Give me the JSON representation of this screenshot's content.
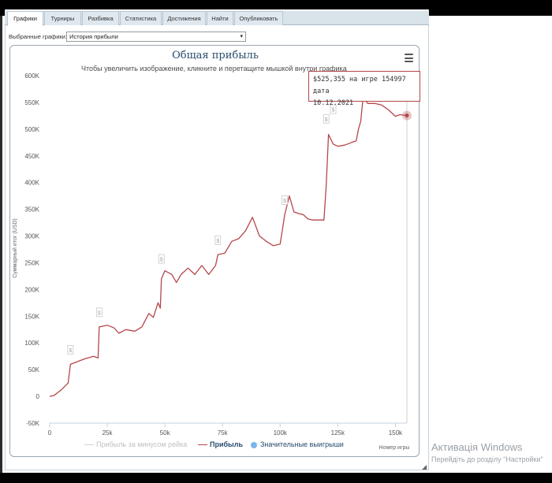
{
  "tabs": [
    {
      "label": "Графики",
      "active": true
    },
    {
      "label": "Турниры",
      "active": false
    },
    {
      "label": "Разбивка",
      "active": false
    },
    {
      "label": "Статистика",
      "active": false
    },
    {
      "label": "Достижения",
      "active": false
    },
    {
      "label": "Найти",
      "active": false
    },
    {
      "label": "Опубликовать",
      "active": false
    }
  ],
  "selector": {
    "label": "Выбранные графики:",
    "value": "История прибыли"
  },
  "chart_data": {
    "type": "line",
    "title": "Общая прибыль",
    "subtitle": "Чтобы увеличить изображение, кликните и перетащите мышкой внутри графика",
    "xlabel": "Номер игры",
    "ylabel": "Суммарный итог (USD)",
    "xlim": [
      0,
      155000
    ],
    "ylim": [
      -50000,
      600000
    ],
    "x_ticks": [
      "0",
      "25k",
      "50k",
      "75k",
      "100k",
      "125k",
      "150k"
    ],
    "y_ticks": [
      "-50K",
      "0",
      "50K",
      "100K",
      "150K",
      "200K",
      "250K",
      "300K",
      "350K",
      "400K",
      "450K",
      "500K",
      "550K",
      "600K"
    ],
    "series": [
      {
        "name": "Прибыль за минусом рейка",
        "color": "#d3d3d3",
        "values": []
      },
      {
        "name": "Прибыль",
        "color": "#b5464a",
        "x": [
          0,
          2000,
          5000,
          8000,
          9000,
          12000,
          15000,
          19000,
          21000,
          21500,
          25000,
          28000,
          30000,
          33000,
          37000,
          40000,
          43000,
          45000,
          47000,
          48000,
          48500,
          50000,
          53000,
          55000,
          57000,
          60000,
          63000,
          66000,
          69000,
          72000,
          73000,
          76000,
          79000,
          82000,
          85000,
          88000,
          91000,
          94000,
          97000,
          100000,
          102000,
          104000,
          106000,
          108000,
          110000,
          112000,
          114000,
          117000,
          119000,
          120000,
          121000,
          123000,
          125000,
          128000,
          131000,
          133000,
          134000,
          135000,
          136000,
          138000,
          141000,
          144000,
          147000,
          150000,
          152000,
          154997
        ],
        "values": [
          0,
          2000,
          12000,
          25000,
          60000,
          65000,
          70000,
          75000,
          72000,
          130000,
          133000,
          128000,
          118000,
          125000,
          122000,
          130000,
          155000,
          148000,
          175000,
          165000,
          220000,
          235000,
          228000,
          213000,
          228000,
          240000,
          228000,
          245000,
          228000,
          245000,
          265000,
          268000,
          290000,
          295000,
          310000,
          335000,
          300000,
          290000,
          282000,
          285000,
          340000,
          375000,
          345000,
          342000,
          340000,
          332000,
          330000,
          330000,
          330000,
          395000,
          490000,
          472000,
          468000,
          470000,
          475000,
          478000,
          500000,
          515000,
          560000,
          548000,
          548000,
          545000,
          536000,
          524000,
          527000,
          525355
        ]
      },
      {
        "name": "Значительные выигрыши",
        "color": "#7cb5ec",
        "values": []
      }
    ],
    "big_win_markers": [
      {
        "x": 9000,
        "y": 60000
      },
      {
        "x": 21500,
        "y": 130000
      },
      {
        "x": 48500,
        "y": 230000
      },
      {
        "x": 73000,
        "y": 265000
      },
      {
        "x": 102000,
        "y": 340000
      },
      {
        "x": 120000,
        "y": 492000
      },
      {
        "x": 123000,
        "y": 510000
      },
      {
        "x": 134000,
        "y": 555000
      }
    ],
    "marker_symbol": "$",
    "tooltip": {
      "line1": "$525,355 на игре 154997 дата",
      "line2": "10.12.2021"
    },
    "legend_placement": "bottom"
  },
  "watermark": {
    "title": "Активація Windows",
    "subtitle": "Перейдіть до розділу \"Настройки\""
  }
}
